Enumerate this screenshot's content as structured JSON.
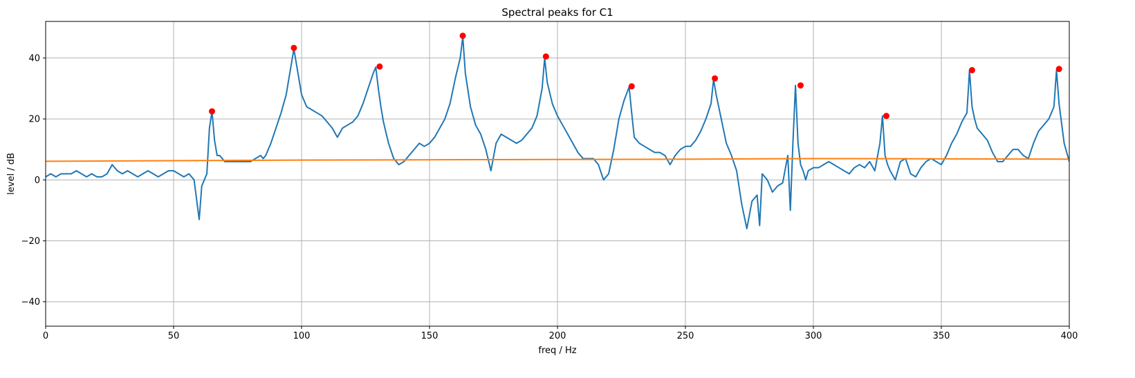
{
  "chart_data": {
    "type": "line",
    "title": "Spectral peaks for C1",
    "xlabel": "freq / Hz",
    "ylabel": "level / dB",
    "xlim": [
      0,
      400
    ],
    "ylim": [
      -48,
      52
    ],
    "xticks": [
      0,
      50,
      100,
      150,
      200,
      250,
      300,
      350,
      400
    ],
    "yticks": [
      -40,
      -20,
      0,
      20,
      40
    ],
    "grid": true,
    "colors": {
      "spectrum": "#1f77b4",
      "floor": "#ff7f0e",
      "peaks": "#ff0000"
    },
    "series": [
      {
        "type": "line",
        "x": [
          0,
          2,
          4,
          6,
          8,
          10,
          12,
          14,
          16,
          18,
          20,
          22,
          24,
          26,
          28,
          30,
          32,
          34,
          36,
          38,
          40,
          42,
          44,
          46,
          48,
          50,
          52,
          54,
          56,
          58,
          60,
          61,
          62,
          63,
          64,
          65,
          66,
          67,
          68,
          69,
          70,
          72,
          74,
          76,
          78,
          80,
          82,
          84,
          85,
          86,
          88,
          90,
          92,
          94,
          96,
          97,
          98,
          100,
          102,
          104,
          106,
          108,
          110,
          112,
          114,
          116,
          118,
          120,
          122,
          124,
          126,
          128,
          129,
          130,
          131,
          132,
          134,
          136,
          138,
          140,
          142,
          144,
          146,
          148,
          150,
          152,
          154,
          156,
          158,
          160,
          162,
          163,
          164,
          166,
          168,
          170,
          172,
          174,
          176,
          178,
          180,
          182,
          184,
          186,
          188,
          190,
          192,
          194,
          195,
          196,
          198,
          200,
          202,
          204,
          206,
          208,
          210,
          212,
          214,
          216,
          218,
          220,
          222,
          224,
          226,
          228,
          229,
          230,
          232,
          234,
          236,
          238,
          240,
          242,
          244,
          246,
          248,
          250,
          252,
          254,
          256,
          258,
          260,
          261,
          262,
          264,
          266,
          268,
          270,
          272,
          274,
          276,
          278,
          279,
          280,
          282,
          284,
          286,
          288,
          290,
          291,
          292,
          293,
          294,
          295,
          296,
          297,
          298,
          300,
          302,
          304,
          306,
          308,
          310,
          312,
          314,
          316,
          318,
          320,
          322,
          324,
          326,
          327,
          328,
          329,
          330,
          332,
          334,
          336,
          338,
          340,
          342,
          344,
          346,
          348,
          350,
          352,
          354,
          356,
          358,
          360,
          361,
          362,
          363,
          364,
          366,
          368,
          370,
          372,
          374,
          376,
          378,
          380,
          382,
          384,
          386,
          388,
          390,
          392,
          394,
          395,
          396,
          398,
          400
        ],
        "y": [
          1,
          2,
          1,
          2,
          2,
          2,
          3,
          2,
          1,
          2,
          1,
          1,
          2,
          5,
          3,
          2,
          3,
          2,
          1,
          2,
          3,
          2,
          1,
          2,
          3,
          3,
          2,
          1,
          2,
          0,
          -13,
          -2,
          0,
          2,
          17,
          22.5,
          13,
          8,
          8,
          7,
          6,
          6,
          6,
          6,
          6,
          6,
          7,
          8,
          7,
          8,
          12,
          17,
          22,
          28,
          38,
          43,
          38,
          28,
          24,
          23,
          22,
          21,
          19,
          17,
          14,
          17,
          18,
          19,
          21,
          25,
          30,
          35,
          37,
          30,
          24,
          19,
          12,
          7,
          5,
          6,
          8,
          10,
          12,
          11,
          12,
          14,
          17,
          20,
          25,
          33,
          40,
          47,
          35,
          24,
          18,
          15,
          10,
          3,
          12,
          15,
          14,
          13,
          12,
          13,
          15,
          17,
          21,
          30,
          40,
          32,
          25,
          21,
          18,
          15,
          12,
          9,
          7,
          7,
          7,
          5,
          0,
          2,
          10,
          20,
          26,
          30.5,
          22,
          14,
          12,
          11,
          10,
          9,
          9,
          8,
          5,
          8,
          10,
          11,
          11,
          13,
          16,
          20,
          25,
          33,
          28,
          20,
          12,
          8,
          3,
          -8,
          -16,
          -7,
          -5,
          -15,
          2,
          0,
          -4,
          -2,
          -1,
          8,
          -10,
          12,
          31,
          12,
          5,
          3,
          0,
          3,
          4,
          4,
          5,
          6,
          5,
          4,
          3,
          2,
          4,
          5,
          4,
          6,
          3,
          12,
          21,
          8,
          5,
          3,
          0,
          6,
          7,
          2,
          1,
          4,
          6,
          7,
          6,
          5,
          8,
          12,
          15,
          19,
          22,
          36,
          24,
          20,
          17,
          15,
          13,
          9,
          6,
          6,
          8,
          10,
          10,
          8,
          7,
          12,
          16,
          18,
          20,
          24,
          36,
          25,
          12,
          6
        ]
      },
      {
        "type": "line",
        "x": [
          0,
          50,
          100,
          150,
          200,
          250,
          300,
          350,
          400
        ],
        "y": [
          6.1,
          6.3,
          6.5,
          6.6,
          6.7,
          6.8,
          7,
          6.9,
          6.8
        ]
      },
      {
        "type": "scatter",
        "x": [
          65,
          97,
          130.5,
          163,
          195.5,
          229,
          261.5,
          295,
          328.5,
          362,
          396
        ],
        "y": [
          22.5,
          43.3,
          37.2,
          47.3,
          40.5,
          30.7,
          33.3,
          31,
          21,
          36,
          36.4
        ]
      }
    ]
  }
}
